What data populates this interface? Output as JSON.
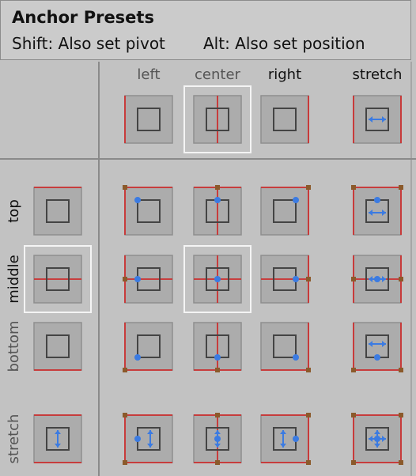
{
  "title": "Anchor Presets",
  "hint_shift": "Shift: Also set pivot",
  "hint_alt": "Alt: Also set position",
  "columns": [
    "left",
    "center",
    "right",
    "stretch"
  ],
  "rows": [
    "top",
    "middle",
    "bottom",
    "stretch"
  ],
  "selected": {
    "horizontal": "center",
    "vertical": "middle"
  },
  "colors": {
    "panel_bg": "#c2c2c2",
    "header_bg": "#cbcbcb",
    "button_bg": "#acacac",
    "outer_border": "#8e8e8e",
    "inner_rect": "#444444",
    "anchor_line": "#cc2f2f",
    "corner_handle": "#8b5a2b",
    "pivot_marker": "#3b7be2",
    "label_inactive": "#555555",
    "label_active": "#111111",
    "selection_outline": "#f4f4f4"
  }
}
